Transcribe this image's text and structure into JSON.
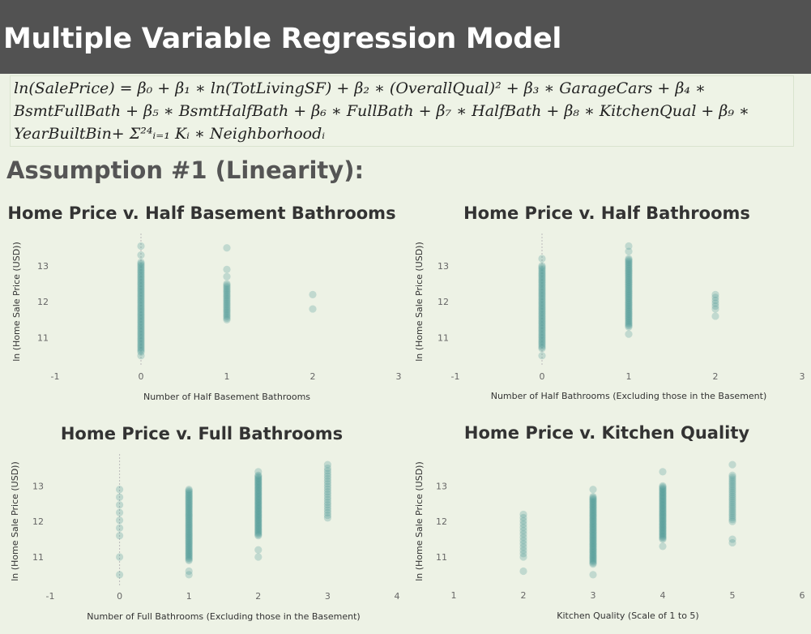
{
  "header": {
    "title": "Multiple Variable Regression Model"
  },
  "formula": {
    "line1": "ln(SalePrice) = β₀ + β₁ ∗ ln(TotLivingSF) + β₂ ∗ (OverallQual)² + β₃ ∗ GarageCars + β₄ ∗",
    "line2": "BsmtFullBath + β₅ ∗ BsmtHalfBath + β₆ ∗ FullBath + β₇ ∗ HalfBath + β₈ ∗ KitchenQual + β₉ ∗",
    "line3": "YearBuiltBin+ Σ²⁴ᵢ₌₁ Kᵢ ∗ Neighborhoodᵢ"
  },
  "section": {
    "title": "Assumption #1 (Linearity):"
  },
  "colors": {
    "point": "#4f9a97",
    "gridline": "#bbbbbb",
    "background": "#edf2e5"
  },
  "chart_data": [
    {
      "type": "scatter",
      "title": "Home Price v. Half Basement Bathrooms",
      "xlabel": "Number of Half Basement Bathrooms",
      "ylabel": "ln (Home Sale Price (USD))",
      "xlim": [
        -1,
        3
      ],
      "ylim": [
        10.2,
        13.9
      ],
      "xticks": [
        "-1",
        "0",
        "1",
        "2",
        "3"
      ],
      "yticks": [
        "11",
        "12",
        "13"
      ],
      "zero_line": true,
      "groups": [
        {
          "x": 0,
          "min": 10.6,
          "max": 13.1,
          "count": 60,
          "outliers": [
            10.5,
            13.3,
            13.55
          ]
        },
        {
          "x": 1,
          "min": 11.5,
          "max": 12.5,
          "count": 25,
          "outliers": [
            12.7,
            12.9,
            13.5
          ]
        },
        {
          "x": 2,
          "min": 11.8,
          "max": 11.8,
          "count": 1,
          "outliers": [
            12.2
          ]
        }
      ]
    },
    {
      "type": "scatter",
      "title": "Home Price v. Half Bathrooms",
      "xlabel": "Number of Half Bathrooms (Excluding those in the Basement)",
      "ylabel": "ln (Home Sale Price (USD))",
      "xlim": [
        -1,
        3
      ],
      "ylim": [
        10.2,
        13.9
      ],
      "xticks": [
        "-1",
        "0",
        "1",
        "2",
        "3"
      ],
      "yticks": [
        "11",
        "12",
        "13"
      ],
      "zero_line": true,
      "groups": [
        {
          "x": 0,
          "min": 10.7,
          "max": 13.0,
          "count": 55,
          "outliers": [
            10.5,
            13.2
          ]
        },
        {
          "x": 1,
          "min": 11.3,
          "max": 13.2,
          "count": 55,
          "outliers": [
            11.1,
            13.4,
            13.55
          ]
        },
        {
          "x": 2,
          "min": 11.8,
          "max": 12.2,
          "count": 6,
          "outliers": [
            11.6
          ]
        }
      ]
    },
    {
      "type": "scatter",
      "title": "Home Price v. Full Bathrooms",
      "xlabel": "Number of Full Bathrooms (Excluding those in the Basement)",
      "ylabel": "ln (Home Sale Price (USD))",
      "xlim": [
        -1,
        4
      ],
      "ylim": [
        10.2,
        13.9
      ],
      "xticks": [
        "-1",
        "0",
        "1",
        "2",
        "3",
        "4"
      ],
      "yticks": [
        "11",
        "12",
        "13"
      ],
      "zero_line": true,
      "groups": [
        {
          "x": 0,
          "min": 11.6,
          "max": 12.9,
          "count": 7,
          "outliers": [
            11.0,
            10.5
          ]
        },
        {
          "x": 1,
          "min": 10.9,
          "max": 12.9,
          "count": 60,
          "outliers": [
            10.5,
            10.6
          ]
        },
        {
          "x": 2,
          "min": 11.6,
          "max": 13.3,
          "count": 55,
          "outliers": [
            11.0,
            11.2,
            13.4
          ]
        },
        {
          "x": 3,
          "min": 12.1,
          "max": 13.5,
          "count": 20,
          "outliers": [
            13.6
          ]
        }
      ]
    },
    {
      "type": "scatter",
      "title": "Home Price v. Kitchen Quality",
      "xlabel": "Kitchen Quality (Scale of 1 to 5)",
      "ylabel": "ln (Home Sale Price (USD))",
      "xlim": [
        1,
        6
      ],
      "ylim": [
        10.2,
        13.9
      ],
      "xticks": [
        "1",
        "2",
        "3",
        "4",
        "5",
        "6"
      ],
      "yticks": [
        "11",
        "12",
        "13"
      ],
      "zero_line": false,
      "groups": [
        {
          "x": 2,
          "min": 11.0,
          "max": 12.2,
          "count": 14,
          "outliers": [
            10.6
          ]
        },
        {
          "x": 3,
          "min": 10.8,
          "max": 12.7,
          "count": 60,
          "outliers": [
            10.5,
            12.9
          ]
        },
        {
          "x": 4,
          "min": 11.5,
          "max": 13.0,
          "count": 50,
          "outliers": [
            11.3,
            13.4
          ]
        },
        {
          "x": 5,
          "min": 12.0,
          "max": 13.3,
          "count": 25,
          "outliers": [
            11.4,
            11.5,
            13.6
          ]
        }
      ]
    }
  ]
}
